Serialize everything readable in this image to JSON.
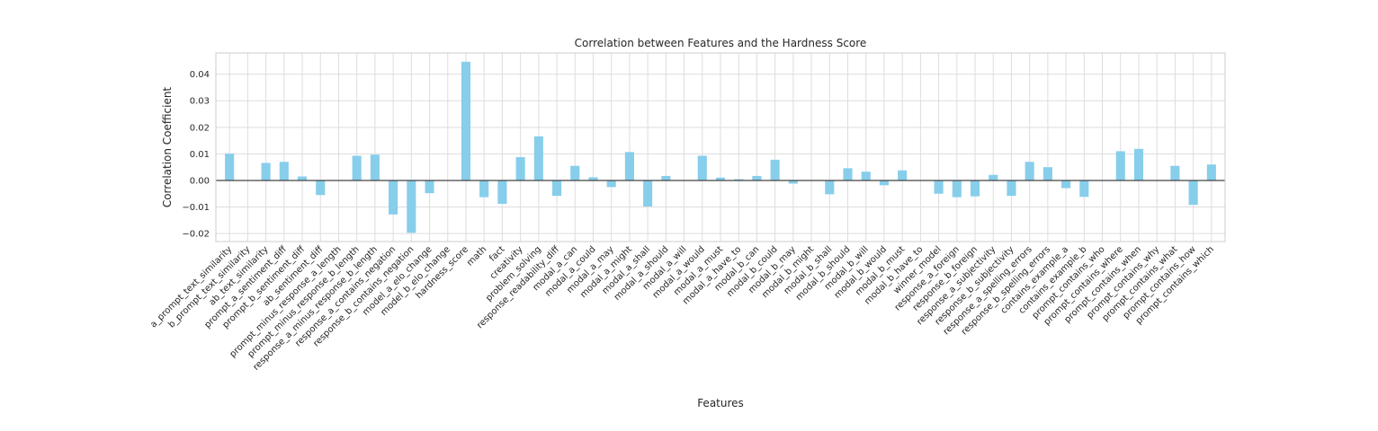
{
  "chart_data": {
    "type": "bar",
    "title": "Correlation between Features and the Hardness Score",
    "xlabel": "Features",
    "ylabel": "Correlation Coefficient",
    "ylim": [
      -0.023,
      0.048
    ],
    "yticks": [
      -0.02,
      -0.01,
      0.0,
      0.01,
      0.02,
      0.03,
      0.04
    ],
    "ytick_labels": [
      "−0.02",
      "−0.01",
      "0.00",
      "0.01",
      "0.02",
      "0.03",
      "0.04"
    ],
    "grid": true,
    "bar_color": "#87ceeb",
    "categories": [
      "a_prompt_text_similarity",
      "b_prompt_text_similarity",
      "ab_text_similarity",
      "prompt_a_sentiment_diff",
      "prompt_b_sentiment_diff",
      "ab_sentiment_diff",
      "prompt_minus_response_a_length",
      "prompt_minus_response_b_length",
      "response_a_minus_response_b_length",
      "response_a_contains_negation",
      "response_b_contains_negation",
      "model_a_elo_change",
      "model_b_elo_change",
      "hardness_score",
      "math",
      "fact",
      "creativity",
      "problem_solving",
      "response_readability_diff",
      "modal_a_can",
      "modal_a_could",
      "modal_a_may",
      "modal_a_might",
      "modal_a_shall",
      "modal_a_should",
      "modal_a_will",
      "modal_a_would",
      "modal_a_must",
      "modal_a_have_to",
      "modal_b_can",
      "modal_b_could",
      "modal_b_may",
      "modal_b_might",
      "modal_b_shall",
      "modal_b_should",
      "modal_b_will",
      "modal_b_would",
      "modal_b_must",
      "modal_b_have_to",
      "winner_model",
      "response_a_foreign",
      "response_b_foreign",
      "response_a_subjectivity",
      "response_b_subjectivity",
      "response_a_spelling_errors",
      "response_b_spelling_errors",
      "contains_example_a",
      "contains_example_b",
      "prompt_contains_who",
      "prompt_contains_where",
      "prompt_contains_when",
      "prompt_contains_why",
      "prompt_contains_what",
      "prompt_contains_how",
      "prompt_contains_which"
    ],
    "values": [
      0.0101,
      0.0,
      0.0066,
      0.007,
      0.0015,
      -0.0055,
      0.0,
      0.0093,
      0.0097,
      -0.0128,
      -0.0197,
      -0.0048,
      0.0,
      0.0447,
      -0.0063,
      -0.0088,
      0.0088,
      0.0166,
      -0.0058,
      0.0055,
      0.0012,
      -0.0025,
      0.0107,
      -0.0098,
      0.0017,
      0.0,
      0.0093,
      0.0011,
      0.0005,
      0.0017,
      0.0078,
      -0.0012,
      0.0,
      -0.0052,
      0.0046,
      0.0033,
      -0.0018,
      0.0038,
      0.0,
      -0.005,
      -0.0063,
      -0.006,
      0.0021,
      -0.0058,
      0.007,
      0.005,
      -0.0029,
      -0.0062,
      0.0,
      0.011,
      0.0119,
      0.0,
      0.0055,
      -0.0092,
      0.006
    ]
  }
}
